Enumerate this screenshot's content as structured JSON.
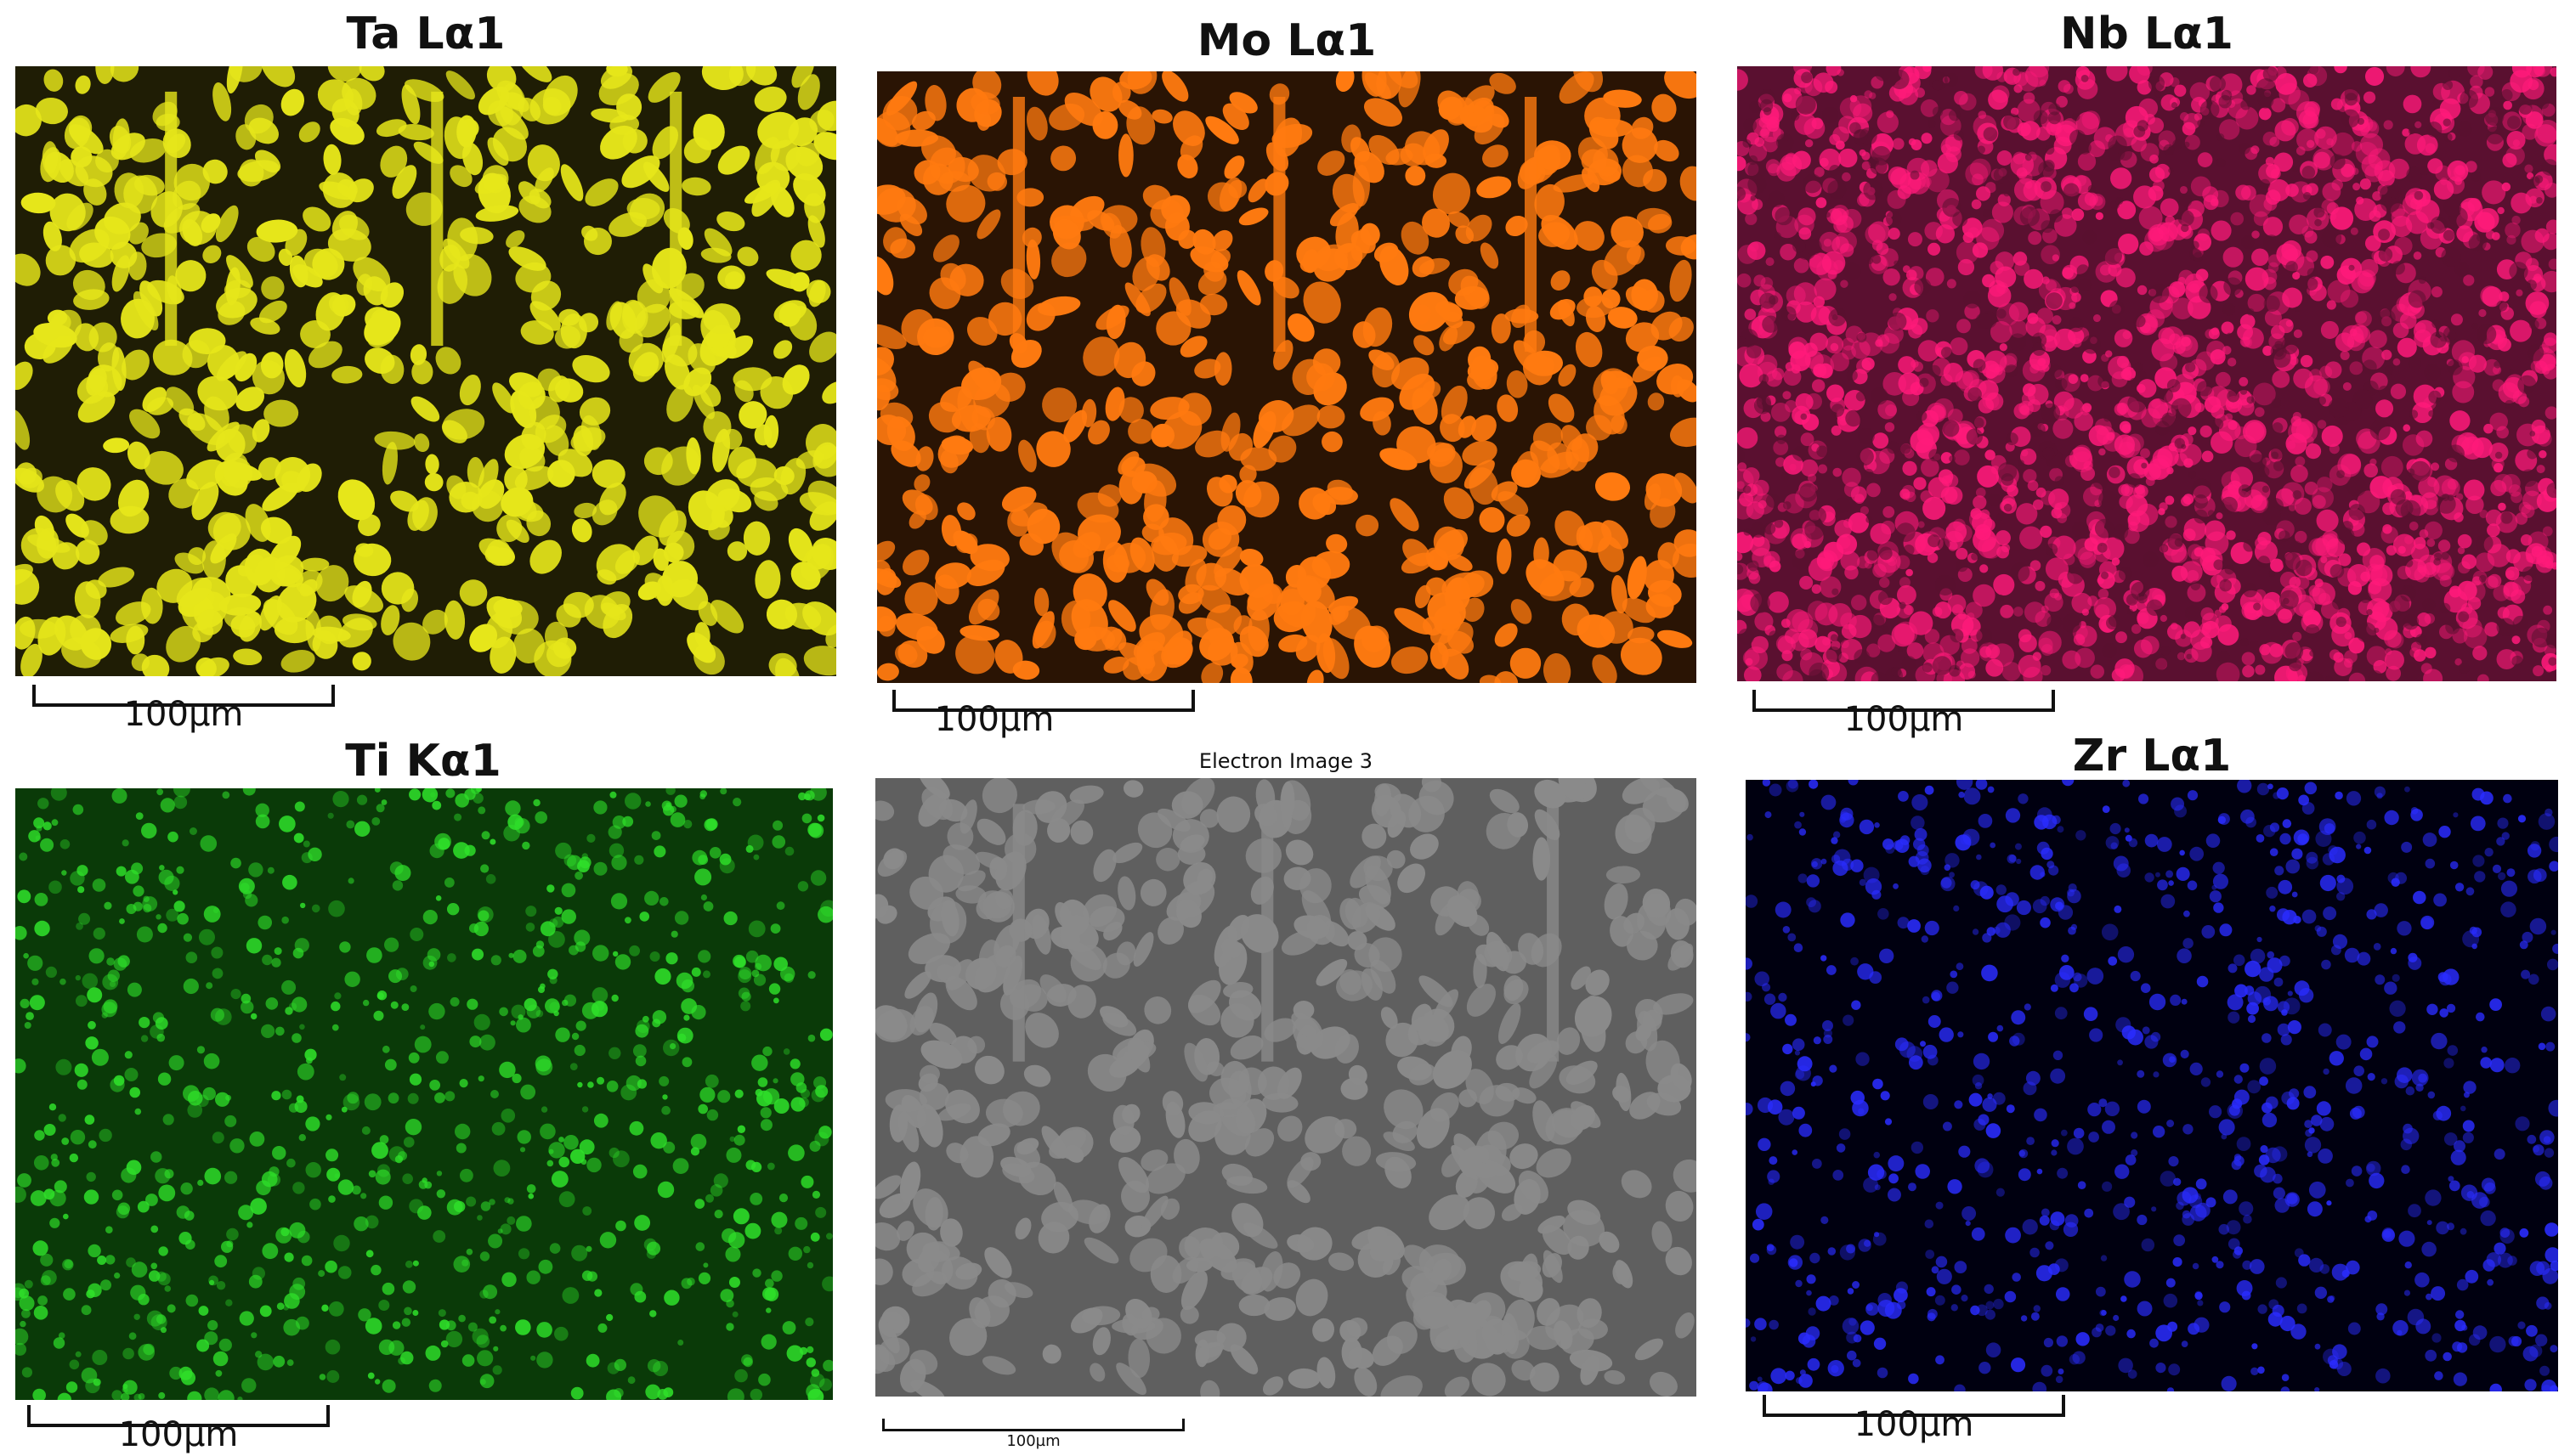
{
  "panels": [
    {
      "id": "ta",
      "title": "Ta Lα1",
      "scale": "100µm",
      "fg": "#e6e61a",
      "bg": "#1f1d05",
      "mode": "grains"
    },
    {
      "id": "mo",
      "title": "Mo Lα1",
      "scale": "100µm",
      "fg": "#ff7a10",
      "bg": "#2a1404",
      "mode": "grains"
    },
    {
      "id": "nb",
      "title": "Nb Lα1",
      "scale": "100µm",
      "fg": "#ff1a7a",
      "bg": "#5a1030",
      "mode": "speckle"
    },
    {
      "id": "ti",
      "title": "Ti Kα1",
      "scale": "100µm",
      "fg": "#2fe02a",
      "bg": "#0a3a08",
      "mode": "network"
    },
    {
      "id": "se",
      "title": "Electron Image 3",
      "scale": "100µm",
      "fg": "#8a8a8a",
      "bg": "#5f5f5f",
      "mode": "sem"
    },
    {
      "id": "zr",
      "title": "Zr Lα1",
      "scale": "100µm",
      "fg": "#2a2cff",
      "bg": "#000010",
      "mode": "network"
    }
  ]
}
